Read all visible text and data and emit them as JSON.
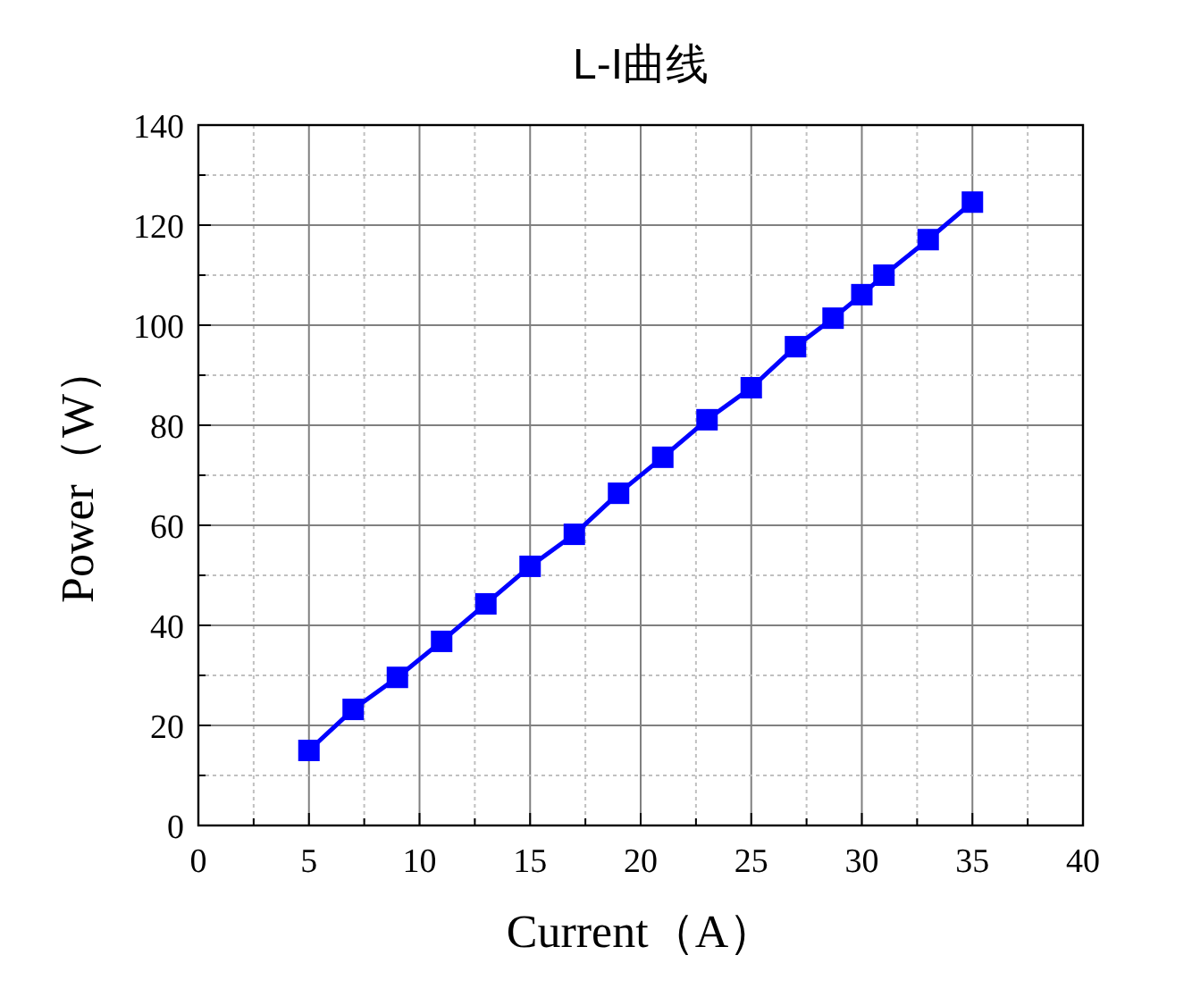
{
  "chart_data": {
    "type": "line",
    "title": "L-I曲线",
    "xlabel": "Current（A）",
    "ylabel": "Power（W）",
    "x": [
      5,
      7,
      9,
      11,
      13,
      15,
      17,
      19,
      21,
      23,
      25,
      27,
      28.7,
      30,
      31,
      33,
      35
    ],
    "series": [
      {
        "color": "#0000ff",
        "values": [
          15,
          23.2,
          29.6,
          36.8,
          44.3,
          51.8,
          58.2,
          66.4,
          73.6,
          81.1,
          87.5,
          95.7,
          101.4,
          106.1,
          110,
          117.1,
          124.6
        ]
      }
    ],
    "xlim": [
      0,
      40
    ],
    "ylim": [
      0,
      140
    ],
    "xticks": [
      0,
      {
        "value": 2.5,
        "label": null
      },
      5,
      {
        "value": 7.5,
        "label": null
      },
      10,
      {
        "value": 12.5,
        "label": null
      },
      15,
      {
        "value": 17.5,
        "label": null
      },
      20,
      {
        "value": 22.5,
        "label": null
      },
      25,
      {
        "value": 27.5,
        "label": null
      },
      30,
      {
        "value": 32.5,
        "label": null
      },
      35,
      {
        "value": 37.5,
        "label": null
      },
      40
    ],
    "yticks": [
      0,
      {
        "value": 10,
        "label": null
      },
      20,
      {
        "value": 30,
        "label": null
      },
      40,
      {
        "value": 50,
        "label": null
      },
      60,
      {
        "value": 70,
        "label": null
      },
      80,
      {
        "value": 90,
        "label": null
      },
      100,
      {
        "value": 110,
        "label": null
      },
      120,
      {
        "value": 130,
        "label": null
      },
      140
    ],
    "grid": true,
    "marker": "square",
    "line_style": "solid"
  }
}
